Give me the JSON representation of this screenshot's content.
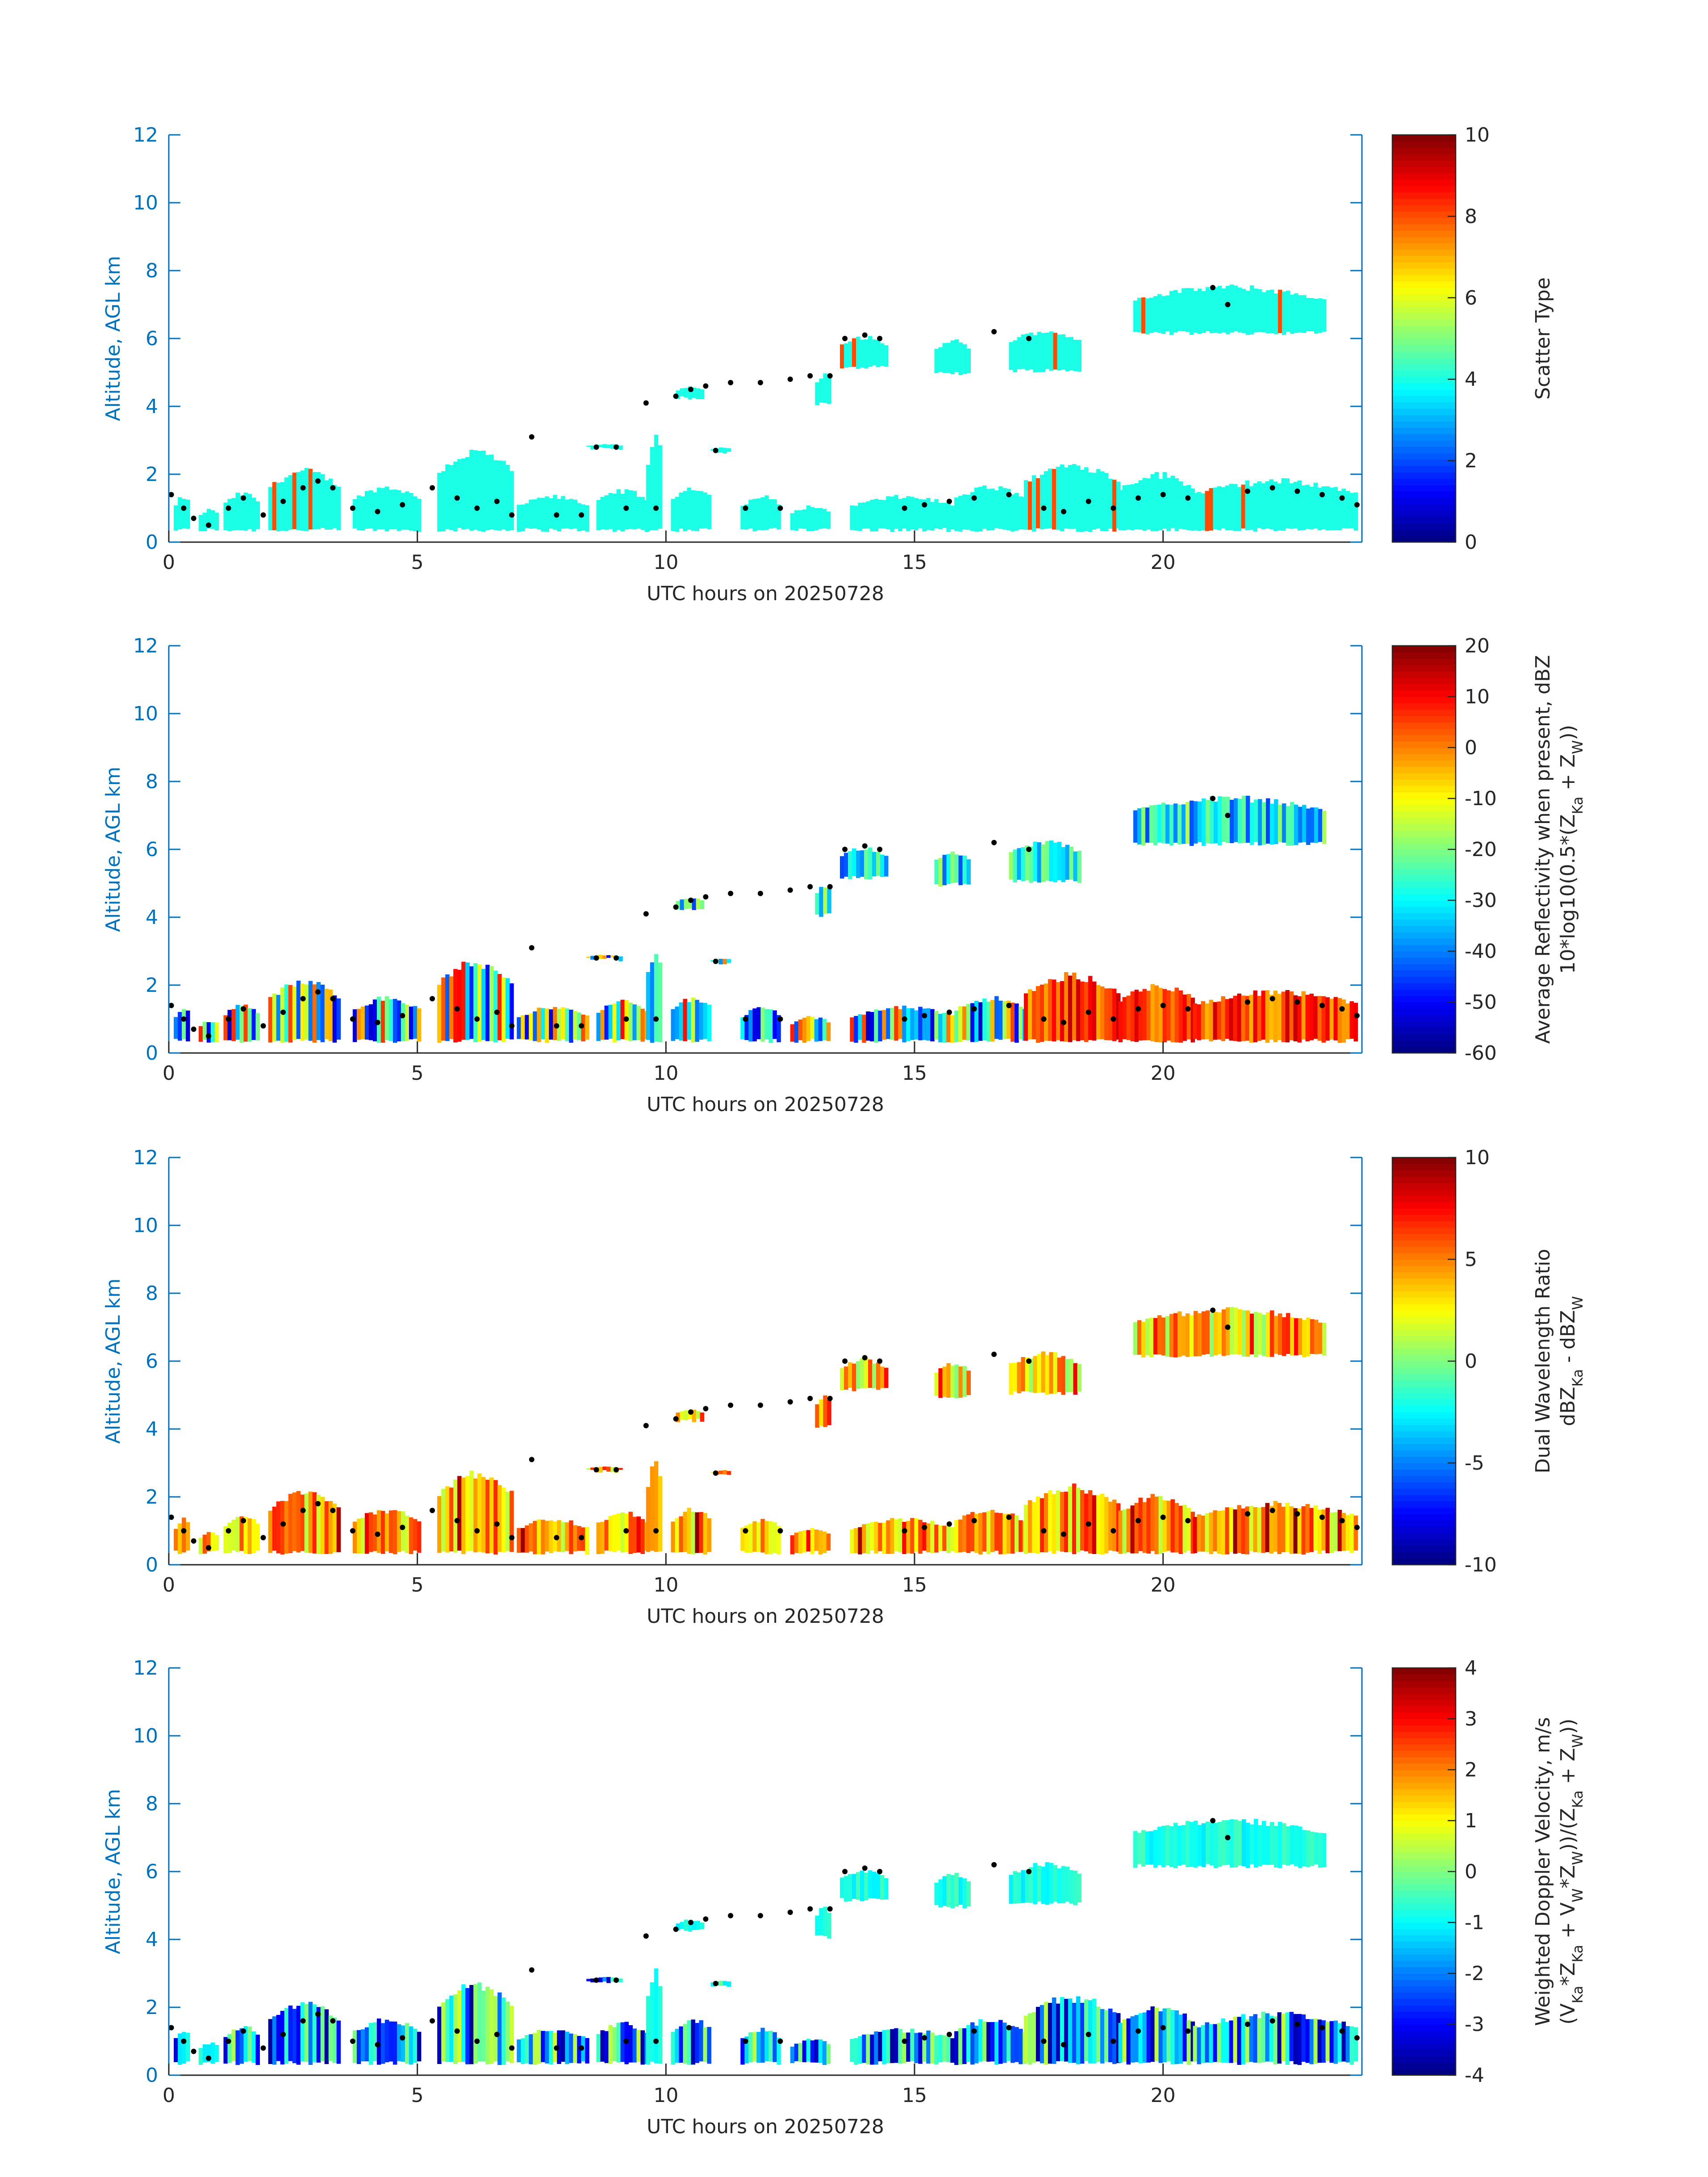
{
  "chart_data": [
    {
      "type": "heatmap",
      "xlabel": "UTC hours on 20250728",
      "ylabel": "Altitude, AGL km",
      "xlim": [
        0,
        24
      ],
      "ylim": [
        0,
        12
      ],
      "xticks": [
        "0",
        "5",
        "10",
        "15",
        "20"
      ],
      "yticks": [
        "0",
        "2",
        "4",
        "6",
        "8",
        "10",
        "12"
      ],
      "colorbar": {
        "label_lines": [
          "Scatter Type"
        ],
        "ticks": [
          "0",
          "2",
          "4",
          "6",
          "8",
          "10"
        ],
        "range": [
          0,
          10
        ]
      },
      "dominant_value": 4
    },
    {
      "type": "heatmap",
      "xlabel": "UTC hours on 20250728",
      "ylabel": "Altitude, AGL km",
      "xlim": [
        0,
        24
      ],
      "ylim": [
        0,
        12
      ],
      "xticks": [
        "0",
        "5",
        "10",
        "15",
        "20"
      ],
      "yticks": [
        "0",
        "2",
        "4",
        "6",
        "8",
        "10",
        "12"
      ],
      "colorbar": {
        "label_lines": [
          "Average Reflectivity when present, dBZ",
          "10*log10(0.5*(Z_Ka + Z_W))"
        ],
        "ticks": [
          "-60",
          "-50",
          "-40",
          "-30",
          "-20",
          "-10",
          "0",
          "10",
          "20"
        ],
        "range": [
          -60,
          20
        ]
      },
      "dominant_value": -32
    },
    {
      "type": "heatmap",
      "xlabel": "UTC hours on 20250728",
      "ylabel": "Altitude, AGL km",
      "xlim": [
        0,
        24
      ],
      "ylim": [
        0,
        12
      ],
      "xticks": [
        "0",
        "5",
        "10",
        "15",
        "20"
      ],
      "yticks": [
        "0",
        "2",
        "4",
        "6",
        "8",
        "10",
        "12"
      ],
      "colorbar": {
        "label_lines": [
          "Dual Wavelength Ratio",
          "dBZ_Ka - dBZ_W"
        ],
        "ticks": [
          "-10",
          "-5",
          "0",
          "5",
          "10"
        ],
        "range": [
          -10,
          10
        ]
      },
      "dominant_value": 3
    },
    {
      "type": "heatmap",
      "xlabel": "UTC hours on 20250728",
      "ylabel": "Altitude, AGL km",
      "xlim": [
        0,
        24
      ],
      "ylim": [
        0,
        12
      ],
      "xticks": [
        "0",
        "5",
        "10",
        "15",
        "20"
      ],
      "yticks": [
        "0",
        "2",
        "4",
        "6",
        "8",
        "10",
        "12"
      ],
      "colorbar": {
        "label_lines": [
          "Weighted Doppler Velocity, m/s",
          "(V_Ka*Z_Ka + V_W*Z_W))/(Z_Ka + Z_W))"
        ],
        "ticks": [
          "-4",
          "-3",
          "-2",
          "-1",
          "0",
          "1",
          "2",
          "3",
          "4"
        ],
        "range": [
          -4,
          4
        ]
      },
      "dominant_value": -1
    }
  ],
  "echoes": [
    {
      "t0": 0.1,
      "t1": 0.4,
      "z0": 0.3,
      "z1": 1.4
    },
    {
      "t0": 0.6,
      "t1": 1.0,
      "z0": 0.3,
      "z1": 1.0
    },
    {
      "t0": 1.1,
      "t1": 1.8,
      "z0": 0.3,
      "z1": 1.5
    },
    {
      "t0": 2.0,
      "t1": 3.4,
      "z0": 0.3,
      "z1": 2.2
    },
    {
      "t0": 3.7,
      "t1": 5.0,
      "z0": 0.3,
      "z1": 1.7
    },
    {
      "t0": 5.4,
      "t1": 6.9,
      "z0": 0.3,
      "z1": 2.8
    },
    {
      "t0": 7.0,
      "t1": 8.4,
      "z0": 0.3,
      "z1": 1.4
    },
    {
      "t0": 8.4,
      "t1": 9.1,
      "z0": 2.7,
      "z1": 2.9
    },
    {
      "t0": 8.6,
      "t1": 9.6,
      "z0": 0.3,
      "z1": 1.6
    },
    {
      "t0": 9.6,
      "t1": 9.9,
      "z0": 0.3,
      "z1": 3.2
    },
    {
      "t0": 10.1,
      "t1": 10.9,
      "z0": 0.3,
      "z1": 1.7
    },
    {
      "t0": 10.2,
      "t1": 10.7,
      "z0": 4.2,
      "z1": 4.6
    },
    {
      "t0": 10.9,
      "t1": 11.3,
      "z0": 2.6,
      "z1": 2.8
    },
    {
      "t0": 11.5,
      "t1": 12.3,
      "z0": 0.3,
      "z1": 1.4
    },
    {
      "t0": 12.5,
      "t1": 13.3,
      "z0": 0.3,
      "z1": 1.1
    },
    {
      "t0": 13.0,
      "t1": 13.3,
      "z0": 4.0,
      "z1": 5.0
    },
    {
      "t0": 13.5,
      "t1": 14.4,
      "z0": 5.1,
      "z1": 6.1
    },
    {
      "t0": 13.7,
      "t1": 15.8,
      "z0": 0.3,
      "z1": 1.4
    },
    {
      "t0": 15.4,
      "t1": 16.1,
      "z0": 4.9,
      "z1": 6.0
    },
    {
      "t0": 15.8,
      "t1": 17.2,
      "z0": 0.3,
      "z1": 1.7
    },
    {
      "t0": 16.9,
      "t1": 18.3,
      "z0": 5.0,
      "z1": 6.3
    },
    {
      "t0": 17.2,
      "t1": 19.1,
      "z0": 0.3,
      "z1": 2.4
    },
    {
      "t0": 19.1,
      "t1": 20.6,
      "z0": 0.3,
      "z1": 2.1
    },
    {
      "t0": 19.4,
      "t1": 23.2,
      "z0": 6.1,
      "z1": 7.6
    },
    {
      "t0": 20.6,
      "t1": 23.9,
      "z0": 0.3,
      "z1": 1.9
    }
  ],
  "cloud_boundary_points": [
    [
      0.05,
      1.4
    ],
    [
      0.3,
      1.0
    ],
    [
      0.5,
      0.7
    ],
    [
      0.8,
      0.5
    ],
    [
      1.2,
      1.0
    ],
    [
      1.5,
      1.3
    ],
    [
      1.9,
      0.8
    ],
    [
      2.3,
      1.2
    ],
    [
      2.7,
      1.6
    ],
    [
      3.0,
      1.8
    ],
    [
      3.3,
      1.6
    ],
    [
      3.7,
      1.0
    ],
    [
      4.2,
      0.9
    ],
    [
      4.7,
      1.1
    ],
    [
      5.3,
      1.6
    ],
    [
      5.8,
      1.3
    ],
    [
      6.2,
      1.0
    ],
    [
      6.6,
      1.2
    ],
    [
      6.9,
      0.8
    ],
    [
      7.3,
      3.1
    ],
    [
      7.8,
      0.8
    ],
    [
      8.3,
      0.8
    ],
    [
      8.6,
      2.8
    ],
    [
      9.0,
      2.8
    ],
    [
      9.2,
      1.0
    ],
    [
      9.6,
      4.1
    ],
    [
      9.8,
      1.0
    ],
    [
      10.2,
      4.3
    ],
    [
      10.5,
      4.5
    ],
    [
      10.8,
      4.6
    ],
    [
      11.0,
      2.7
    ],
    [
      11.3,
      4.7
    ],
    [
      11.6,
      1.0
    ],
    [
      11.9,
      4.7
    ],
    [
      12.3,
      1.0
    ],
    [
      12.5,
      4.8
    ],
    [
      12.9,
      4.9
    ],
    [
      13.3,
      4.9
    ],
    [
      13.6,
      6.0
    ],
    [
      14.0,
      6.1
    ],
    [
      14.3,
      6.0
    ],
    [
      14.8,
      1.0
    ],
    [
      15.2,
      1.1
    ],
    [
      15.7,
      1.2
    ],
    [
      16.2,
      1.3
    ],
    [
      16.6,
      6.2
    ],
    [
      16.9,
      1.4
    ],
    [
      17.3,
      6.0
    ],
    [
      17.6,
      1.0
    ],
    [
      18.0,
      0.9
    ],
    [
      18.5,
      1.2
    ],
    [
      19.0,
      1.0
    ],
    [
      19.5,
      1.3
    ],
    [
      20.0,
      1.4
    ],
    [
      20.5,
      1.3
    ],
    [
      21.0,
      7.5
    ],
    [
      21.3,
      7.0
    ],
    [
      21.7,
      1.5
    ],
    [
      22.2,
      1.6
    ],
    [
      22.7,
      1.5
    ],
    [
      23.2,
      1.4
    ],
    [
      23.6,
      1.3
    ],
    [
      23.9,
      1.1
    ]
  ]
}
